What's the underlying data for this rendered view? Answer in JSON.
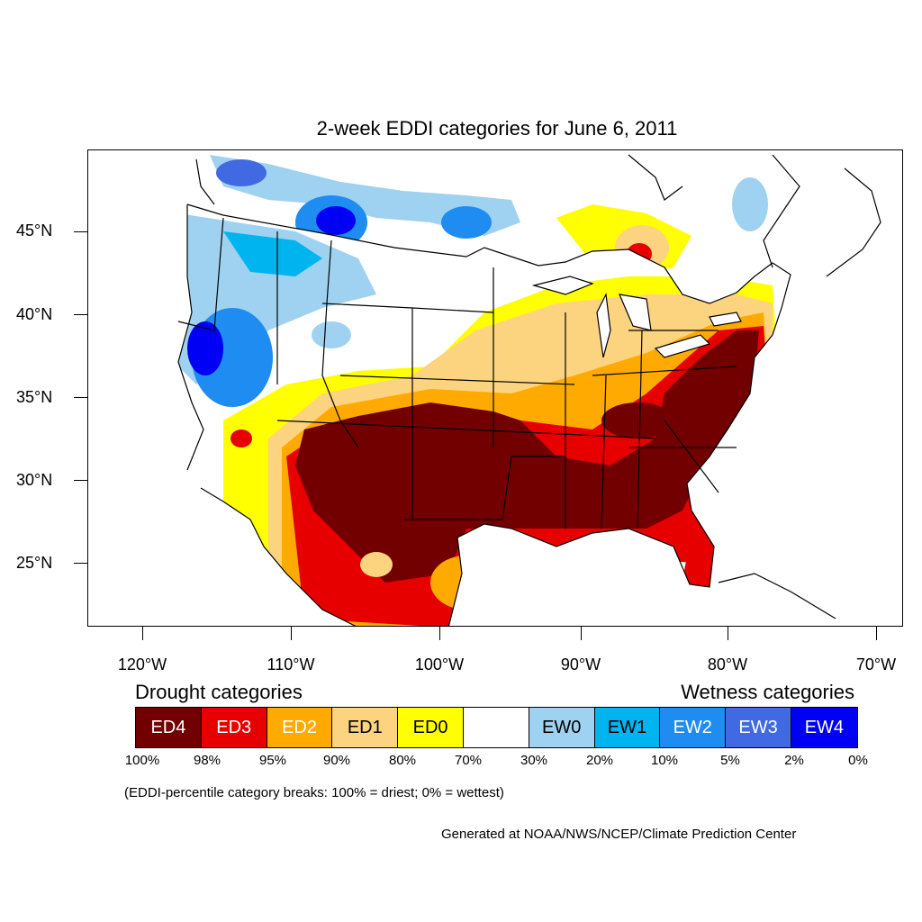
{
  "title": "2-week EDDI categories for June 6, 2011",
  "map": {
    "lat_labels": [
      "45°N",
      "40°N",
      "35°N",
      "30°N",
      "25°N"
    ],
    "lon_labels": [
      "120°W",
      "110°W",
      "100°W",
      "90°W",
      "80°W",
      "70°W"
    ]
  },
  "legend": {
    "drought_heading": "Drought categories",
    "wetness_heading": "Wetness categories",
    "categories": [
      {
        "label": "ED4",
        "color": "#730000",
        "text_color": "#ffffff"
      },
      {
        "label": "ED3",
        "color": "#e60000",
        "text_color": "#ffffff"
      },
      {
        "label": "ED2",
        "color": "#ffaa00",
        "text_color": "#ffffff"
      },
      {
        "label": "ED1",
        "color": "#fcd37f",
        "text_color": "#000000"
      },
      {
        "label": "ED0",
        "color": "#ffff00",
        "text_color": "#000000"
      },
      {
        "label": "",
        "color": "#ffffff",
        "text_color": "#000000"
      },
      {
        "label": "EW0",
        "color": "#9fd2f0",
        "text_color": "#000000"
      },
      {
        "label": "EW1",
        "color": "#00b4f0",
        "text_color": "#000000"
      },
      {
        "label": "EW2",
        "color": "#1e8cf0",
        "text_color": "#ffffff"
      },
      {
        "label": "EW3",
        "color": "#4169e1",
        "text_color": "#ffffff"
      },
      {
        "label": "EW4",
        "color": "#0000f5",
        "text_color": "#ffffff"
      }
    ],
    "breaks": [
      "100%",
      "98%",
      "95%",
      "90%",
      "80%",
      "70%",
      "30%",
      "20%",
      "10%",
      "5%",
      "2%",
      "0%"
    ]
  },
  "note": "(EDDI-percentile category breaks: 100% = driest; 0% = wettest)",
  "credit": "Generated at NOAA/NWS/NCEP/Climate Prediction Center"
}
